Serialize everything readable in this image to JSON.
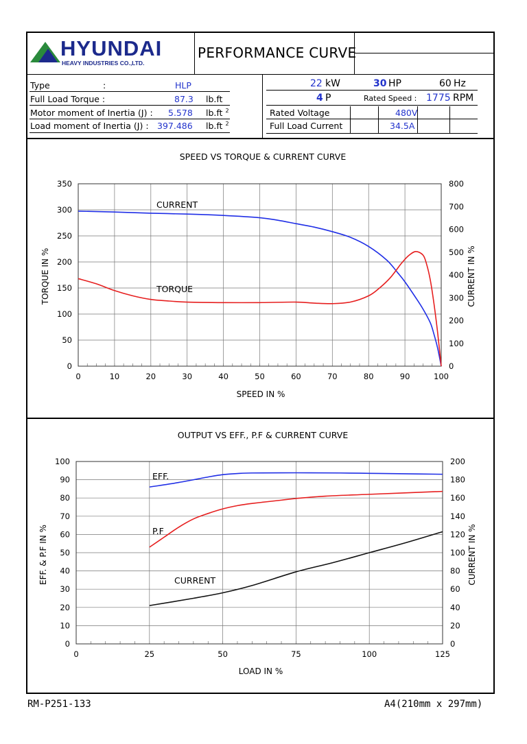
{
  "header": {
    "brand": "HYUNDAI",
    "brand_sub": "HEAVY INDUSTRIES CO.,LTD.",
    "doc_title": "PERFORMANCE CURVE"
  },
  "specs_left": [
    {
      "label": "Type",
      "sep": ":",
      "value": "HLP",
      "unit": ""
    },
    {
      "label": "Full Load Torque :",
      "sep": "",
      "value": "87.3",
      "unit": "lb.ft"
    },
    {
      "label": "Motor moment of Inertia (J) :",
      "sep": "",
      "value": "5.578",
      "unit": "lb.ft",
      "sup": "2"
    },
    {
      "label": "Load moment of Inertia (J) :",
      "sep": "",
      "value": "397.486",
      "unit": "lb.ft",
      "sup": "2"
    }
  ],
  "specs_right": {
    "kw_value": "22",
    "kw_unit": "kW",
    "hp_value": "30",
    "hp_unit": "HP",
    "hz_value": "60",
    "hz_unit": "Hz",
    "pole_value": "4",
    "pole_unit": "P",
    "rated_speed_label": "Rated Speed :",
    "rated_speed_value": "1775",
    "rated_speed_unit": "RPM",
    "rated_voltage_label": "Rated Voltage",
    "rated_voltage_value": "480V",
    "full_load_current_label": "Full Load Current",
    "full_load_current_value": "34.5A"
  },
  "chart_data": [
    {
      "type": "line",
      "title": "SPEED VS TORQUE & CURRENT CURVE",
      "xlabel": "SPEED IN %",
      "ylabel": "TORQUE IN %",
      "y2label": "CURRENT IN %",
      "xlim": [
        0,
        100
      ],
      "ylim": [
        0,
        350
      ],
      "y2lim": [
        0,
        800
      ],
      "xticks": [
        0,
        10,
        20,
        30,
        40,
        50,
        60,
        70,
        80,
        90,
        100
      ],
      "yticks": [
        0,
        50,
        100,
        150,
        200,
        250,
        300,
        350
      ],
      "y2ticks": [
        0,
        100,
        200,
        300,
        400,
        500,
        600,
        700,
        800
      ],
      "grid": true,
      "series": [
        {
          "name": "CURRENT",
          "axis": "y2",
          "color": "#1f2ee6",
          "x": [
            0,
            10,
            20,
            30,
            40,
            50,
            55,
            60,
            65,
            70,
            75,
            80,
            85,
            88,
            90,
            93,
            95,
            97,
            98,
            99,
            100
          ],
          "y": [
            680,
            676,
            671,
            667,
            661,
            651,
            640,
            625,
            610,
            590,
            565,
            525,
            465,
            410,
            370,
            300,
            250,
            190,
            140,
            80,
            0
          ]
        },
        {
          "name": "TORQUE",
          "axis": "y",
          "color": "#e61e1e",
          "x": [
            0,
            5,
            10,
            15,
            20,
            25,
            30,
            40,
            50,
            60,
            65,
            70,
            75,
            80,
            83,
            86,
            89,
            91,
            93,
            95,
            96,
            97,
            98,
            99,
            100
          ],
          "y": [
            168,
            158,
            145,
            135,
            128,
            125,
            123,
            122,
            122,
            123,
            121,
            120,
            123,
            135,
            150,
            170,
            197,
            212,
            220,
            213,
            195,
            165,
            120,
            65,
            0
          ]
        }
      ],
      "annotations": [
        "CURRENT",
        "TORQUE"
      ]
    },
    {
      "type": "line",
      "title": "OUTPUT VS EFF., P.F & CURRENT CURVE",
      "xlabel": "LOAD IN %",
      "ylabel": "EFF. & P.F IN %",
      "y2label": "CURRENT IN %",
      "xlim": [
        0,
        125
      ],
      "ylim": [
        0,
        100
      ],
      "y2lim": [
        0,
        200
      ],
      "xticks": [
        0,
        25,
        50,
        75,
        100,
        125
      ],
      "yticks": [
        0,
        10,
        20,
        30,
        40,
        50,
        60,
        70,
        80,
        90,
        100
      ],
      "y2ticks": [
        0,
        20,
        40,
        60,
        80,
        100,
        120,
        140,
        160,
        180,
        200
      ],
      "grid": true,
      "series": [
        {
          "name": "EFF.",
          "axis": "y",
          "color": "#1f2ee6",
          "x": [
            25,
            35,
            45,
            50,
            55,
            60,
            75,
            90,
            100,
            110,
            125
          ],
          "y": [
            86,
            88.5,
            91.5,
            92.8,
            93.4,
            93.7,
            93.8,
            93.7,
            93.5,
            93.3,
            93.0
          ]
        },
        {
          "name": "P.F",
          "axis": "y",
          "color": "#e61e1e",
          "x": [
            25,
            30,
            35,
            40,
            45,
            50,
            55,
            60,
            70,
            75,
            85,
            100,
            125
          ],
          "y": [
            53,
            58.5,
            64,
            68.5,
            71.5,
            74,
            75.8,
            77,
            78.8,
            79.7,
            81,
            82,
            83.6
          ]
        },
        {
          "name": "CURRENT",
          "axis": "y2",
          "color": "#111111",
          "x": [
            25,
            40,
            50,
            60,
            75,
            87.5,
            100,
            112.5,
            125
          ],
          "y": [
            42,
            50,
            56,
            64,
            79,
            89,
            100,
            111,
            123
          ]
        }
      ],
      "annotations": [
        "EFF.",
        "P.F",
        "CURRENT"
      ]
    }
  ],
  "footer": {
    "left": "RM-P251-133",
    "right": "A4(210mm x 297mm)"
  }
}
